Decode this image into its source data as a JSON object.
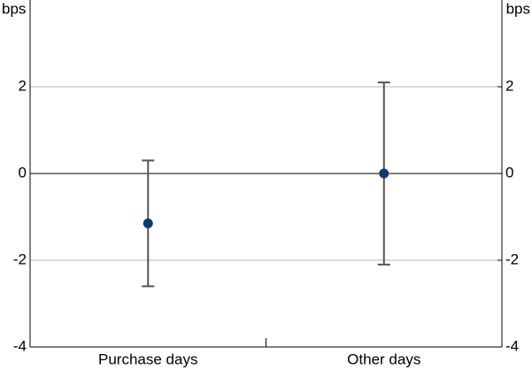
{
  "chart_data": {
    "type": "errorbar",
    "y_label": "bps",
    "y2_label": "bps",
    "categories": [
      "Purchase days",
      "Other days"
    ],
    "values": [
      -1.15,
      0
    ],
    "errors": [
      1.45,
      2.1
    ],
    "color": "#0b3c6e",
    "error_color": "#555555",
    "ylim": [
      -4,
      4
    ],
    "yticks": [
      -4,
      -2,
      0,
      2
    ],
    "y2lim": [
      -4,
      4
    ],
    "y2ticks": [
      -4,
      -2,
      0,
      2
    ],
    "grid": true
  }
}
